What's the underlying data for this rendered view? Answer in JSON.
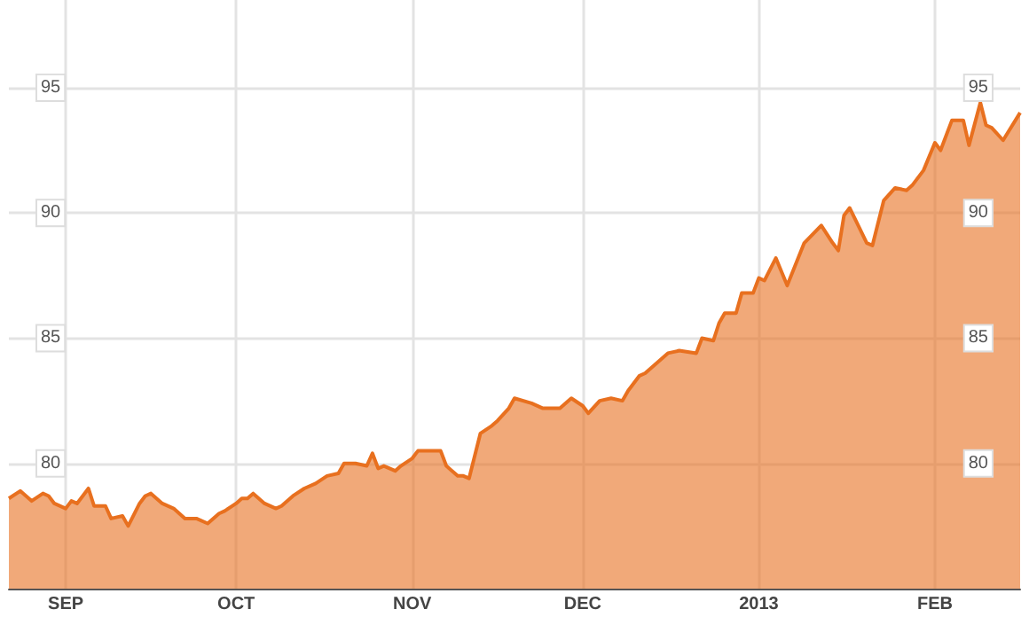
{
  "chart_data": {
    "type": "area",
    "x": [
      "2012-08-22",
      "2012-08-24",
      "2012-08-26",
      "2012-08-28",
      "2012-08-29",
      "2012-08-30",
      "2012-09-01",
      "2012-09-02",
      "2012-09-03",
      "2012-09-05",
      "2012-09-06",
      "2012-09-08",
      "2012-09-09",
      "2012-09-11",
      "2012-09-12",
      "2012-09-14",
      "2012-09-15",
      "2012-09-16",
      "2012-09-18",
      "2012-09-20",
      "2012-09-22",
      "2012-09-24",
      "2012-09-26",
      "2012-09-28",
      "2012-09-29",
      "2012-10-01",
      "2012-10-02",
      "2012-10-03",
      "2012-10-04",
      "2012-10-06",
      "2012-10-08",
      "2012-10-09",
      "2012-10-11",
      "2012-10-13",
      "2012-10-15",
      "2012-10-17",
      "2012-10-19",
      "2012-10-20",
      "2012-10-22",
      "2012-10-24",
      "2012-10-25",
      "2012-10-26",
      "2012-10-27",
      "2012-10-29",
      "2012-10-30",
      "2012-11-01",
      "2012-11-02",
      "2012-11-04",
      "2012-11-06",
      "2012-11-07",
      "2012-11-09",
      "2012-11-10",
      "2012-11-11",
      "2012-11-13",
      "2012-11-15",
      "2012-11-16",
      "2012-11-18",
      "2012-11-19",
      "2012-11-22",
      "2012-11-24",
      "2012-11-27",
      "2012-11-29",
      "2012-12-01",
      "2012-12-02",
      "2012-12-04",
      "2012-12-06",
      "2012-12-08",
      "2012-12-09",
      "2012-12-11",
      "2012-12-12",
      "2012-12-14",
      "2012-12-16",
      "2012-12-18",
      "2012-12-21",
      "2012-12-22",
      "2012-12-24",
      "2012-12-25",
      "2012-12-26",
      "2012-12-28",
      "2012-12-29",
      "2012-12-31",
      "2013-01-01",
      "2013-01-02",
      "2013-01-04",
      "2013-01-06",
      "2013-01-09",
      "2013-01-12",
      "2013-01-14",
      "2013-01-15",
      "2013-01-16",
      "2013-01-17",
      "2013-01-20",
      "2013-01-21",
      "2013-01-23",
      "2013-01-25",
      "2013-01-27",
      "2013-01-28",
      "2013-01-30",
      "2013-02-01",
      "2013-02-02",
      "2013-02-04",
      "2013-02-06",
      "2013-02-07",
      "2013-02-09",
      "2013-02-10",
      "2013-02-11",
      "2013-02-13",
      "2013-02-16"
    ],
    "series": [
      {
        "color": "#e8701f",
        "values": [
          78.6,
          78.9,
          78.5,
          78.8,
          78.7,
          78.4,
          78.2,
          78.5,
          78.4,
          79.0,
          78.3,
          78.3,
          77.8,
          77.9,
          77.5,
          78.4,
          78.7,
          78.8,
          78.4,
          78.2,
          77.8,
          77.8,
          77.6,
          78.0,
          78.1,
          78.4,
          78.6,
          78.6,
          78.8,
          78.4,
          78.2,
          78.3,
          78.7,
          79.0,
          79.2,
          79.5,
          79.6,
          80.0,
          80.0,
          79.9,
          80.4,
          79.8,
          79.9,
          79.7,
          79.9,
          80.2,
          80.5,
          80.5,
          80.5,
          79.9,
          79.5,
          79.5,
          79.4,
          81.2,
          81.5,
          81.7,
          82.2,
          82.6,
          82.4,
          82.2,
          82.2,
          82.6,
          82.3,
          82.0,
          82.5,
          82.6,
          82.5,
          82.9,
          83.5,
          83.6,
          84.0,
          84.4,
          84.5,
          84.4,
          85.0,
          84.9,
          85.6,
          86.0,
          86.0,
          86.8,
          86.8,
          87.4,
          87.3,
          88.2,
          87.1,
          88.8,
          89.5,
          88.8,
          88.5,
          89.9,
          90.2,
          88.8,
          88.7,
          90.5,
          91.0,
          90.9,
          91.1,
          91.7,
          92.8,
          92.5,
          93.7,
          93.7,
          92.7,
          94.4,
          93.5,
          93.4,
          92.9,
          94.0
        ]
      }
    ],
    "xlim": [
      "2012-08-22",
      "2013-02-16"
    ],
    "xticks": [
      {
        "value": "2012-09-01",
        "label": "SEP"
      },
      {
        "value": "2012-10-01",
        "label": "OCT"
      },
      {
        "value": "2012-11-01",
        "label": "NOV"
      },
      {
        "value": "2012-12-01",
        "label": "DEC"
      },
      {
        "value": "2013-01-01",
        "label": "2013"
      },
      {
        "value": "2013-02-01",
        "label": "FEB"
      }
    ],
    "ylim": [
      75,
      98.5
    ],
    "yticks": [
      80,
      85,
      90,
      95
    ],
    "y2lim": [
      75,
      98.5
    ],
    "y2ticks": [
      80,
      85,
      90,
      95
    ],
    "grid": true
  }
}
